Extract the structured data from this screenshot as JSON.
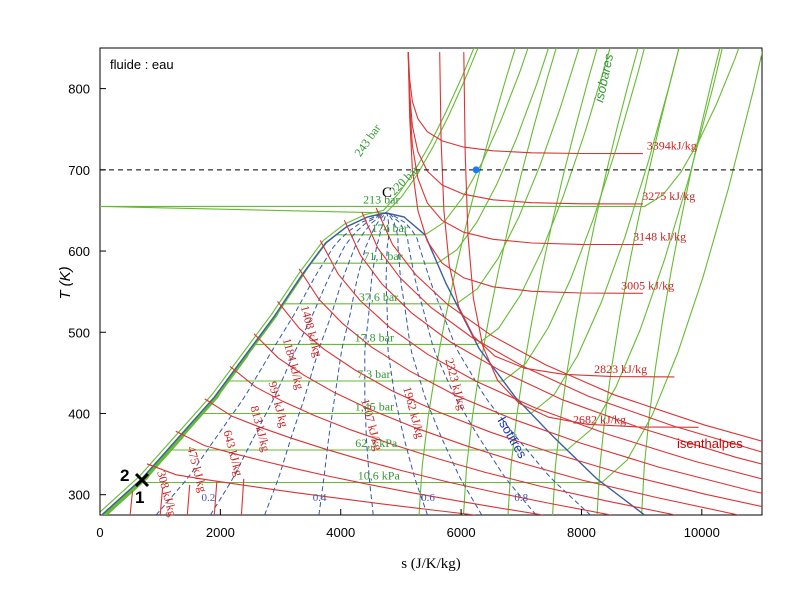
{
  "chart_data": {
    "type": "line",
    "title": "",
    "annotation": "fluide : eau",
    "xlabel": "s (J/K/kg)",
    "ylabel": "T (K)",
    "xlim": [
      0,
      11000
    ],
    "ylim": [
      275,
      850
    ],
    "xticks": [
      "0",
      "2000",
      "4000",
      "6000",
      "8000",
      "10000"
    ],
    "yticks": [
      "300",
      "400",
      "500",
      "600",
      "700",
      "800"
    ],
    "xtick_values": [
      0,
      2000,
      4000,
      6000,
      8000,
      10000
    ],
    "ytick_values": [
      300,
      400,
      500,
      600,
      700,
      800
    ],
    "colors": {
      "isobar": "#66bb33",
      "isenthalp": "#dd3333",
      "isotitre": "#3355aa",
      "saturation": "#3a5fa0",
      "reference": "#000000",
      "state_marker": "#1f77ff"
    },
    "reference_line": {
      "T": 700,
      "style": "dashed"
    },
    "state_point": {
      "s": 6250,
      "T": 700
    },
    "critical_point": {
      "label": "C",
      "s": 4750,
      "T": 647
    },
    "points_1_2": {
      "label_1": "1",
      "label_2": "2",
      "s": 700,
      "T": 320
    },
    "saturation_dome": {
      "liquid": [
        [
          0,
          273
        ],
        [
          700,
          320
        ],
        [
          1300,
          370
        ],
        [
          1900,
          420
        ],
        [
          2400,
          470
        ],
        [
          2900,
          520
        ],
        [
          3350,
          570
        ],
        [
          3750,
          610
        ],
        [
          4100,
          630
        ],
        [
          4450,
          642
        ],
        [
          4750,
          647
        ]
      ],
      "vapor": [
        [
          4750,
          647
        ],
        [
          5050,
          642
        ],
        [
          5400,
          620
        ],
        [
          5750,
          560
        ],
        [
          6300,
          480
        ],
        [
          6900,
          420
        ],
        [
          7550,
          370
        ],
        [
          8250,
          320
        ],
        [
          9050,
          275
        ]
      ]
    },
    "curve_labels": {
      "isobares": "isobares",
      "isenthalpes": "isenthalpes",
      "isotitres": "Isotitres"
    },
    "isobar_labels": [
      "243 bar",
      "220 bar",
      "213 bar",
      "174 bar",
      "71,1 bar",
      "37,6 bar",
      "17,8 bar",
      "7,3 bar",
      "1,45 bar",
      "62,3 kPa",
      "10,6 kPa"
    ],
    "isobar_label_T": [
      730,
      680,
      655,
      620,
      585,
      535,
      485,
      440,
      400,
      355,
      315
    ],
    "vapor_enthalpy_labels": [
      "3394kJ/kg",
      "3275 kJ/kg",
      "3148 kJ/kg",
      "3005 kJ/kg",
      "2823 kJ/kg",
      "2682 kJ/kg"
    ],
    "vapor_enthalpy_T": [
      720,
      658,
      608,
      548,
      445,
      383
    ],
    "dome_enthalpy_labels": [
      "308 kJ/kg",
      "475 kJ/kg",
      "643 kJ/kg",
      "813 kJ/kg",
      "991 kJ/kg",
      "1184 kJ/kg",
      "1408 kJ/kg",
      "1707 kJ/kg",
      "1962 kJ/kg",
      "2323 kJ/kg"
    ],
    "quality_labels": [
      "0.2",
      "0.4",
      "0.6",
      "0.8"
    ],
    "quality_values": [
      0.2,
      0.4,
      0.6,
      0.8
    ]
  }
}
